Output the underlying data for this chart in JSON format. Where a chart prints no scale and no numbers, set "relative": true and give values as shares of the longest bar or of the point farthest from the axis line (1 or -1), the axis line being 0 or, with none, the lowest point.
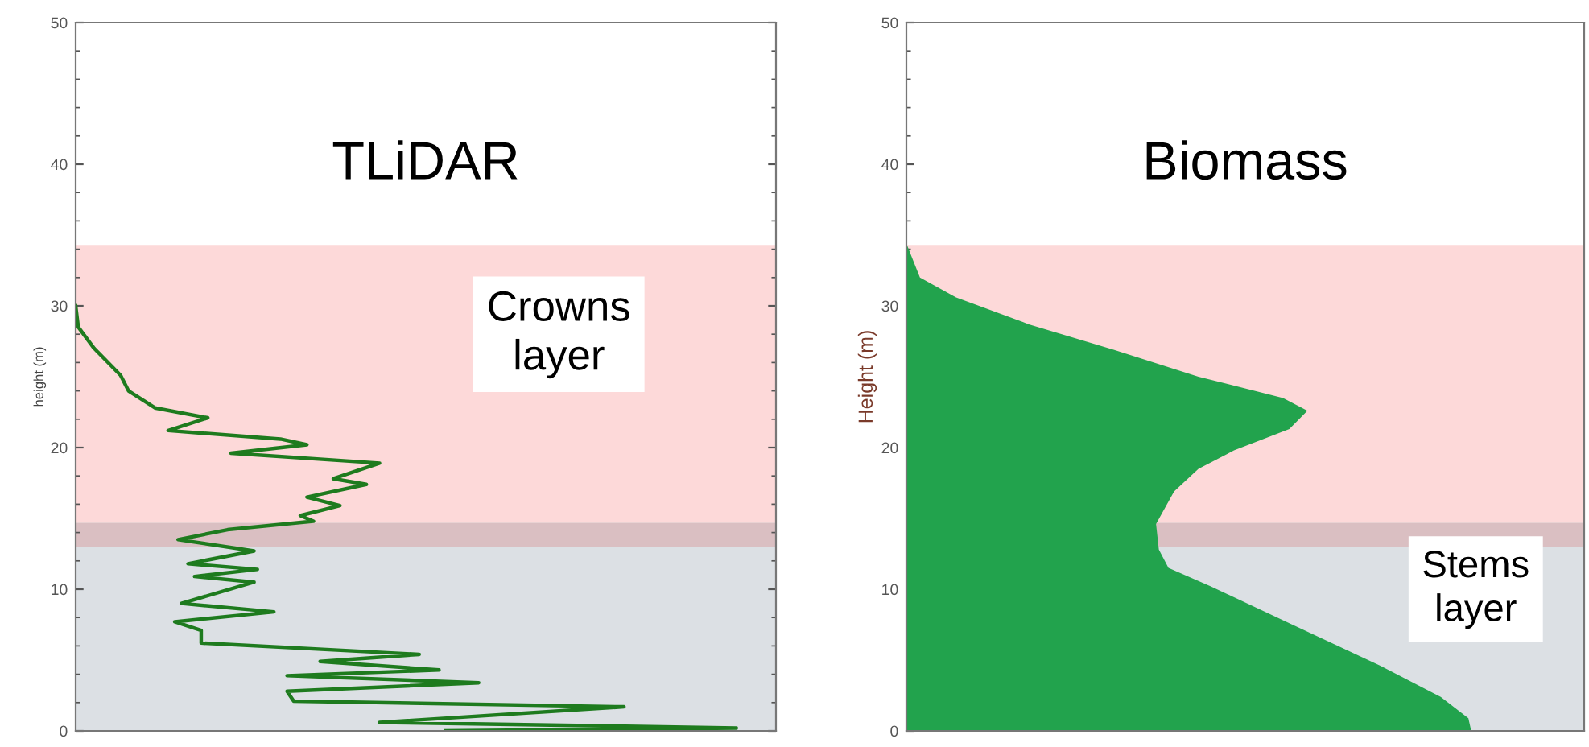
{
  "chart_data": [
    {
      "type": "line",
      "title": "TLiDAR",
      "ylabel": "height (m)",
      "orientation": "horizontal",
      "relative": true,
      "tick_labels": "y",
      "grid": false,
      "legend": false,
      "ylim": [
        0,
        50
      ],
      "yticks": [
        0,
        10,
        20,
        30,
        40,
        50
      ],
      "series": [
        {
          "color": "#1e7b1e",
          "x": [
            30.0,
            28.5,
            27.0,
            25.1,
            24.0,
            22.8,
            22.1,
            21.2,
            20.6,
            20.2,
            19.6,
            18.9,
            17.8,
            17.4,
            16.5,
            15.9,
            15.2,
            14.8,
            14.2,
            13.5,
            12.7,
            11.8,
            11.4,
            10.9,
            10.5,
            9.0,
            8.4,
            7.7,
            7.1,
            6.2,
            5.4,
            4.9,
            4.3,
            3.9,
            3.4,
            2.8,
            2.1,
            1.7,
            0.6,
            0.2,
            0.0
          ],
          "values": [
            0,
            0.004,
            0.028,
            0.068,
            0.08,
            0.12,
            0.2,
            0.14,
            0.31,
            0.35,
            0.235,
            0.46,
            0.39,
            0.44,
            0.35,
            0.4,
            0.34,
            0.36,
            0.23,
            0.155,
            0.27,
            0.17,
            0.275,
            0.18,
            0.27,
            0.16,
            0.3,
            0.15,
            0.19,
            0.19,
            0.52,
            0.37,
            0.55,
            0.32,
            0.61,
            0.32,
            0.33,
            0.83,
            0.46,
            1.0,
            0.56
          ]
        }
      ],
      "bands": [
        {
          "axis": "y",
          "from": 0,
          "to": 13.0,
          "color": "#dce0e4"
        },
        {
          "axis": "y",
          "from": 13.0,
          "to": 14.7,
          "color": "#dabfc2"
        },
        {
          "axis": "y",
          "from": 14.7,
          "to": 34.3,
          "color": "#fdd9d9",
          "label": "Crowns\nlayer"
        }
      ]
    },
    {
      "type": "area",
      "title": "Biomass",
      "ylabel": "Height (m)",
      "orientation": "horizontal",
      "relative": true,
      "tick_labels": "y",
      "grid": false,
      "legend": false,
      "ylim": [
        0,
        50
      ],
      "yticks": [
        0,
        10,
        20,
        30,
        40,
        50
      ],
      "series": [
        {
          "color": "#22a34d",
          "x": [
            34.4,
            32.0,
            30.6,
            28.7,
            26.9,
            25.0,
            23.5,
            22.6,
            21.3,
            19.8,
            18.5,
            16.9,
            14.6,
            12.8,
            11.5,
            10.2,
            7.6,
            4.6,
            2.4,
            0.9,
            0.0
          ],
          "values": [
            0,
            0.024,
            0.088,
            0.217,
            0.367,
            0.517,
            0.667,
            0.71,
            0.678,
            0.58,
            0.517,
            0.474,
            0.442,
            0.447,
            0.464,
            0.539,
            0.678,
            0.839,
            0.946,
            0.995,
            1.0
          ]
        }
      ],
      "bands": [
        {
          "axis": "y",
          "from": 0,
          "to": 13.0,
          "color": "#dce0e4",
          "label": "Stems\nlayer"
        },
        {
          "axis": "y",
          "from": 13.0,
          "to": 14.7,
          "color": "#dabfc2"
        },
        {
          "axis": "y",
          "from": 14.7,
          "to": 34.3,
          "color": "#fdd9d9"
        }
      ]
    }
  ]
}
